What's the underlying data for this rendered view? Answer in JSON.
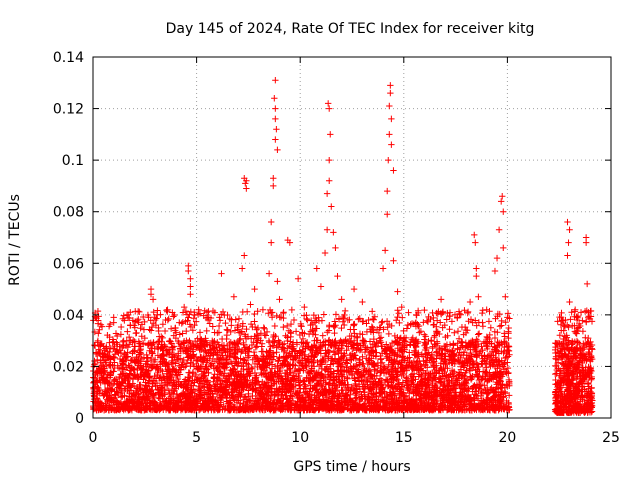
{
  "chart_data": {
    "type": "scatter",
    "title": "Day 145 of 2024, Rate Of TEC Index for receiver kitg",
    "xlabel": "GPS time / hours",
    "ylabel": "ROTI / TECUs",
    "xlim": [
      0,
      25
    ],
    "ylim": [
      0,
      0.14
    ],
    "x_ticks": [
      0,
      5,
      10,
      15,
      20,
      25
    ],
    "x_tick_labels": [
      "0",
      "5",
      "10",
      "15",
      "20",
      "25"
    ],
    "y_ticks": [
      0,
      0.02,
      0.04,
      0.06,
      0.08,
      0.1,
      0.12,
      0.14
    ],
    "y_tick_labels": [
      "0",
      "0.02",
      "0.04",
      "0.06",
      "0.08",
      "0.1",
      "0.12",
      "0.14"
    ],
    "grid": true,
    "marker": "+",
    "color": "#ff0000",
    "data_gap_hours": [
      20.1,
      22.3
    ],
    "series": [
      {
        "name": "ROTI",
        "points": [
          [
            0.1,
            0.021
          ],
          [
            0.1,
            0.028
          ],
          [
            0.2,
            0.012
          ],
          [
            0.3,
            0.018
          ],
          [
            0.5,
            0.015
          ],
          [
            0.7,
            0.024
          ],
          [
            0.9,
            0.011
          ],
          [
            1.0,
            0.039
          ],
          [
            1.0,
            0.037
          ],
          [
            1.1,
            0.026
          ],
          [
            1.4,
            0.019
          ],
          [
            1.7,
            0.04
          ],
          [
            1.8,
            0.041
          ],
          [
            1.8,
            0.036
          ],
          [
            1.8,
            0.03
          ],
          [
            2.0,
            0.022
          ],
          [
            2.1,
            0.033
          ],
          [
            2.3,
            0.017
          ],
          [
            2.5,
            0.031
          ],
          [
            2.8,
            0.05
          ],
          [
            2.8,
            0.048
          ],
          [
            2.9,
            0.046
          ],
          [
            3.0,
            0.038
          ],
          [
            3.1,
            0.04
          ],
          [
            3.4,
            0.024
          ],
          [
            3.5,
            0.038
          ],
          [
            3.8,
            0.021
          ],
          [
            4.0,
            0.031
          ],
          [
            4.2,
            0.027
          ],
          [
            4.4,
            0.043
          ],
          [
            4.6,
            0.059
          ],
          [
            4.6,
            0.057
          ],
          [
            4.7,
            0.054
          ],
          [
            4.7,
            0.051
          ],
          [
            4.7,
            0.048
          ],
          [
            4.9,
            0.036
          ],
          [
            5.1,
            0.042
          ],
          [
            5.3,
            0.028
          ],
          [
            5.5,
            0.041
          ],
          [
            5.7,
            0.025
          ],
          [
            6.0,
            0.033
          ],
          [
            6.1,
            0.039
          ],
          [
            6.2,
            0.056
          ],
          [
            6.5,
            0.034
          ],
          [
            6.8,
            0.047
          ],
          [
            7.0,
            0.036
          ],
          [
            7.2,
            0.058
          ],
          [
            7.3,
            0.063
          ],
          [
            7.3,
            0.093
          ],
          [
            7.35,
            0.091
          ],
          [
            7.4,
            0.089
          ],
          [
            7.4,
            0.092
          ],
          [
            7.6,
            0.044
          ],
          [
            7.8,
            0.05
          ],
          [
            8.0,
            0.031
          ],
          [
            8.2,
            0.042
          ],
          [
            8.5,
            0.056
          ],
          [
            8.6,
            0.076
          ],
          [
            8.6,
            0.068
          ],
          [
            8.7,
            0.093
          ],
          [
            8.7,
            0.09
          ],
          [
            8.8,
            0.131
          ],
          [
            8.8,
            0.12
          ],
          [
            8.75,
            0.124
          ],
          [
            8.8,
            0.116
          ],
          [
            8.85,
            0.112
          ],
          [
            8.8,
            0.108
          ],
          [
            8.9,
            0.104
          ],
          [
            8.9,
            0.053
          ],
          [
            9.0,
            0.046
          ],
          [
            9.2,
            0.041
          ],
          [
            9.4,
            0.069
          ],
          [
            9.5,
            0.068
          ],
          [
            9.7,
            0.038
          ],
          [
            9.9,
            0.054
          ],
          [
            10.2,
            0.043
          ],
          [
            10.5,
            0.036
          ],
          [
            10.8,
            0.058
          ],
          [
            11.0,
            0.051
          ],
          [
            11.2,
            0.064
          ],
          [
            11.3,
            0.073
          ],
          [
            11.3,
            0.087
          ],
          [
            11.4,
            0.1
          ],
          [
            11.35,
            0.122
          ],
          [
            11.4,
            0.12
          ],
          [
            11.45,
            0.11
          ],
          [
            11.4,
            0.092
          ],
          [
            11.5,
            0.082
          ],
          [
            11.6,
            0.072
          ],
          [
            11.7,
            0.066
          ],
          [
            11.8,
            0.055
          ],
          [
            12.0,
            0.046
          ],
          [
            12.3,
            0.038
          ],
          [
            12.6,
            0.05
          ],
          [
            13.0,
            0.045
          ],
          [
            13.3,
            0.038
          ],
          [
            13.5,
            0.035
          ],
          [
            13.8,
            0.033
          ],
          [
            14.0,
            0.058
          ],
          [
            14.1,
            0.065
          ],
          [
            14.2,
            0.079
          ],
          [
            14.2,
            0.088
          ],
          [
            14.25,
            0.1
          ],
          [
            14.3,
            0.11
          ],
          [
            14.3,
            0.121
          ],
          [
            14.35,
            0.129
          ],
          [
            14.35,
            0.126
          ],
          [
            14.4,
            0.116
          ],
          [
            14.4,
            0.106
          ],
          [
            14.5,
            0.096
          ],
          [
            14.5,
            0.061
          ],
          [
            14.7,
            0.049
          ],
          [
            14.9,
            0.043
          ],
          [
            15.2,
            0.036
          ],
          [
            15.6,
            0.04
          ],
          [
            16.0,
            0.028
          ],
          [
            16.5,
            0.032
          ],
          [
            16.8,
            0.046
          ],
          [
            17.2,
            0.024
          ],
          [
            17.6,
            0.029
          ],
          [
            18.0,
            0.033
          ],
          [
            18.2,
            0.045
          ],
          [
            18.4,
            0.071
          ],
          [
            18.45,
            0.068
          ],
          [
            18.5,
            0.058
          ],
          [
            18.5,
            0.055
          ],
          [
            18.6,
            0.047
          ],
          [
            18.8,
            0.037
          ],
          [
            19.0,
            0.042
          ],
          [
            19.2,
            0.035
          ],
          [
            19.4,
            0.057
          ],
          [
            19.5,
            0.062
          ],
          [
            19.6,
            0.073
          ],
          [
            19.7,
            0.084
          ],
          [
            19.75,
            0.086
          ],
          [
            19.8,
            0.08
          ],
          [
            19.8,
            0.066
          ],
          [
            19.9,
            0.047
          ],
          [
            20.0,
            0.039
          ],
          [
            20.05,
            0.031
          ],
          [
            22.4,
            0.029
          ],
          [
            22.6,
            0.024
          ],
          [
            22.8,
            0.038
          ],
          [
            22.9,
            0.076
          ],
          [
            23.0,
            0.073
          ],
          [
            22.95,
            0.068
          ],
          [
            22.9,
            0.063
          ],
          [
            23.0,
            0.045
          ],
          [
            23.1,
            0.041
          ],
          [
            23.3,
            0.033
          ],
          [
            23.5,
            0.026
          ],
          [
            23.8,
            0.07
          ],
          [
            23.8,
            0.068
          ],
          [
            23.85,
            0.052
          ],
          [
            23.9,
            0.031
          ],
          [
            24.0,
            0.022
          ]
        ]
      }
    ],
    "band": {
      "description_points": "dense baseline scatter between ~0.003 and ~0.03 TECU/s",
      "segments": [
        {
          "x_range": [
            0,
            20.1
          ],
          "y_range": [
            0.003,
            0.03
          ],
          "density": 5200
        },
        {
          "x_range": [
            22.3,
            24.1
          ],
          "y_range": [
            0.002,
            0.03
          ],
          "density": 700
        }
      ]
    }
  }
}
